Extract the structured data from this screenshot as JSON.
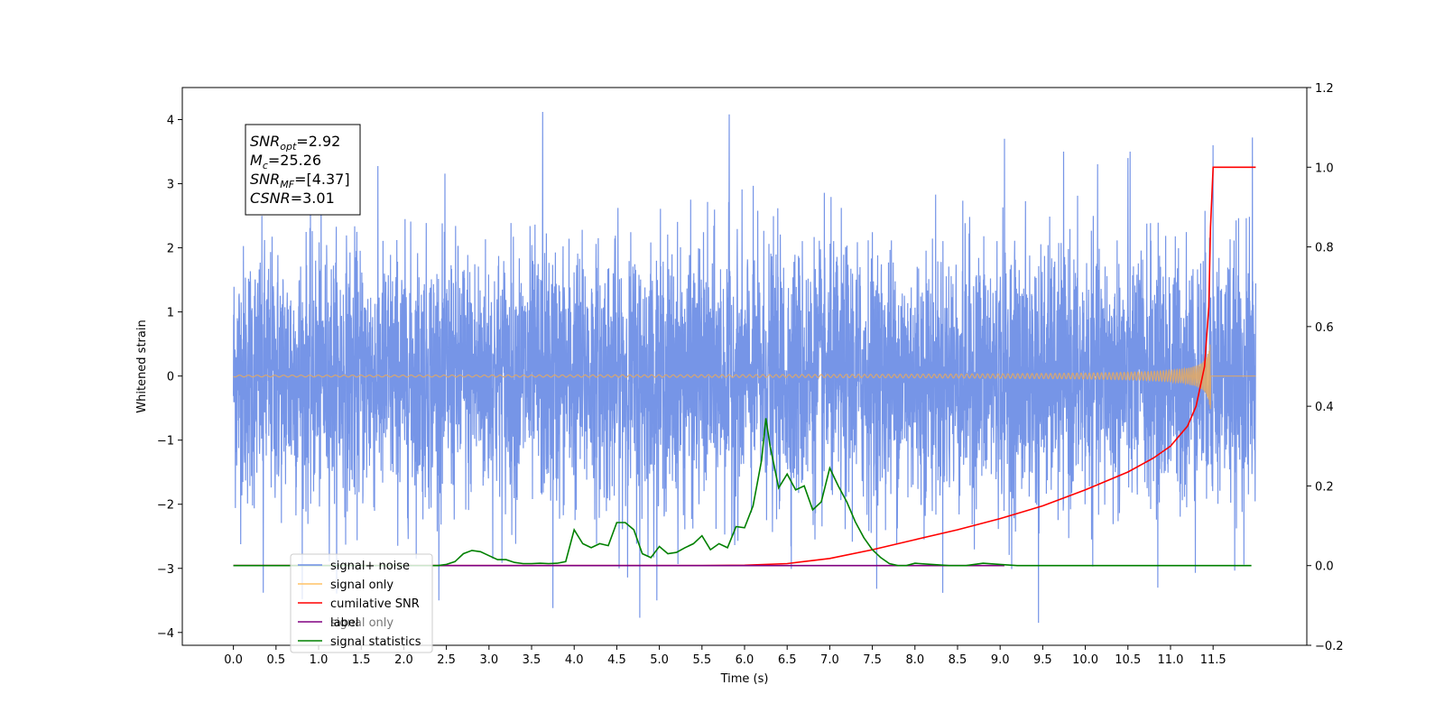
{
  "chart_data": {
    "type": "line",
    "xlabel": "Time (s)",
    "ylabel_left": "Whitened strain",
    "ylabel_right": "",
    "xlim": [
      -0.6,
      12.6
    ],
    "ylim_left": [
      -4.2,
      4.5
    ],
    "ylim_right": [
      -0.2,
      1.2
    ],
    "x_ticks": [
      0.0,
      0.5,
      1.0,
      1.5,
      2.0,
      2.5,
      3.0,
      3.5,
      4.0,
      4.5,
      5.0,
      5.5,
      6.0,
      6.5,
      7.0,
      7.5,
      8.0,
      8.5,
      9.0,
      9.5,
      10.0,
      10.5,
      11.0,
      11.5
    ],
    "x_tick_labels": [
      "0.0",
      "0.5",
      "1.0",
      "1.5",
      "2.0",
      "2.5",
      "3.0",
      "3.5",
      "4.0",
      "4.5",
      "5.0",
      "5.5",
      "6.0",
      "6.5",
      "7.0",
      "7.5",
      "8.0",
      "8.5",
      "9.0",
      "9.5",
      "10.0",
      "10.5",
      "11.0",
      "11.5"
    ],
    "y_left_ticks": [
      4,
      3,
      2,
      1,
      0,
      -1,
      -2,
      -3,
      -4
    ],
    "y_left_tick_labels": [
      "4",
      "3",
      "2",
      "1",
      "0",
      "−1",
      "−2",
      "−3",
      "−4"
    ],
    "y_right_ticks": [
      1.2,
      1.0,
      0.8,
      0.6,
      0.4,
      0.2,
      0.0,
      -0.2
    ],
    "y_right_tick_labels": [
      "1.2",
      "1.0",
      "0.8",
      "0.6",
      "0.4",
      "0.2",
      "0.0",
      "−0.2"
    ],
    "grid": false,
    "legend": {
      "placement": "lower-left",
      "entries": [
        {
          "label": "signal+ noise",
          "color": "#6f8fe6"
        },
        {
          "label": "signal only",
          "color": "#ffc266"
        },
        {
          "label": "cumilative SNR",
          "color": "#ff0000"
        },
        {
          "label": "label",
          "color": "#800080"
        },
        {
          "label": "signal statistics",
          "color": "#008000"
        }
      ]
    },
    "hidden_legend_text": "signal only",
    "annotation": {
      "lines": [
        {
          "main": "SNR",
          "sub": "opt",
          "rest": "=2.92"
        },
        {
          "main": "M",
          "sub": "c",
          "rest": "=25.26"
        },
        {
          "main": "SNR",
          "sub": "MF",
          "rest": "=[4.37]"
        },
        {
          "main": "CSNR",
          "sub": "",
          "rest": "=3.01"
        }
      ]
    },
    "series": [
      {
        "name": "signal+ noise",
        "axis": "left",
        "color": "#6f8fe6",
        "style": "noise",
        "x_range": [
          0.0,
          12.0
        ],
        "amplitude_std": 1.0,
        "peaks": [
          {
            "x": 3.63,
            "y": 4.12
          },
          {
            "x": 5.82,
            "y": 4.08
          },
          {
            "x": 11.96,
            "y": 3.72
          },
          {
            "x": 11.5,
            "y": 3.6
          },
          {
            "x": 9.05,
            "y": 3.7
          },
          {
            "x": 10.5,
            "y": 3.4
          },
          {
            "x": 0.35,
            "y": -3.38
          },
          {
            "x": 4.77,
            "y": -3.77
          },
          {
            "x": 9.45,
            "y": -3.85
          },
          {
            "x": 3.75,
            "y": -3.62
          },
          {
            "x": 10.85,
            "y": -3.3
          }
        ]
      },
      {
        "name": "signal only",
        "axis": "left",
        "color": "#e0a868",
        "style": "chirp",
        "x_range": [
          0.0,
          11.5
        ],
        "merger_time": 11.47,
        "peak_amplitude": 0.62
      },
      {
        "name": "cumilative SNR",
        "axis": "right",
        "x": [
          0.0,
          5.5,
          6.0,
          6.5,
          7.0,
          7.5,
          8.0,
          8.5,
          9.0,
          9.5,
          10.0,
          10.5,
          10.8,
          11.0,
          11.2,
          11.3,
          11.4,
          11.45,
          11.47,
          11.5,
          12.0
        ],
        "y": [
          0.0,
          0.0,
          0.001,
          0.005,
          0.018,
          0.04,
          0.065,
          0.09,
          0.118,
          0.15,
          0.19,
          0.235,
          0.27,
          0.3,
          0.35,
          0.4,
          0.5,
          0.65,
          0.85,
          1.0,
          1.0
        ],
        "color": "#ff0000"
      },
      {
        "name": "label",
        "axis": "right",
        "x": [
          0.0,
          9.05
        ],
        "y": [
          0.0,
          0.0
        ],
        "color": "#800080"
      },
      {
        "name": "signal statistics",
        "axis": "right",
        "x": [
          0.0,
          2.4,
          2.5,
          2.6,
          2.7,
          2.8,
          2.9,
          3.0,
          3.1,
          3.2,
          3.3,
          3.4,
          3.5,
          3.6,
          3.7,
          3.8,
          3.9,
          4.0,
          4.1,
          4.2,
          4.3,
          4.4,
          4.5,
          4.6,
          4.7,
          4.8,
          4.9,
          5.0,
          5.1,
          5.2,
          5.3,
          5.4,
          5.5,
          5.6,
          5.7,
          5.8,
          5.9,
          6.0,
          6.1,
          6.2,
          6.25,
          6.3,
          6.4,
          6.5,
          6.6,
          6.7,
          6.8,
          6.9,
          7.0,
          7.1,
          7.2,
          7.3,
          7.4,
          7.5,
          7.6,
          7.7,
          7.8,
          7.9,
          8.0,
          8.2,
          8.4,
          8.6,
          8.8,
          9.0,
          9.2,
          9.5,
          11.95
        ],
        "y": [
          0.0,
          0.0,
          0.003,
          0.01,
          0.03,
          0.038,
          0.035,
          0.025,
          0.015,
          0.015,
          0.008,
          0.005,
          0.005,
          0.006,
          0.005,
          0.006,
          0.01,
          0.09,
          0.055,
          0.045,
          0.055,
          0.05,
          0.108,
          0.108,
          0.09,
          0.03,
          0.02,
          0.048,
          0.03,
          0.033,
          0.045,
          0.055,
          0.075,
          0.04,
          0.055,
          0.045,
          0.098,
          0.095,
          0.15,
          0.265,
          0.37,
          0.3,
          0.195,
          0.23,
          0.19,
          0.2,
          0.14,
          0.16,
          0.245,
          0.2,
          0.16,
          0.11,
          0.07,
          0.04,
          0.02,
          0.005,
          0.0,
          0.0,
          0.006,
          0.003,
          0.0,
          0.0,
          0.006,
          0.003,
          0.0,
          0.0,
          0.0
        ],
        "color": "#008000"
      }
    ]
  }
}
